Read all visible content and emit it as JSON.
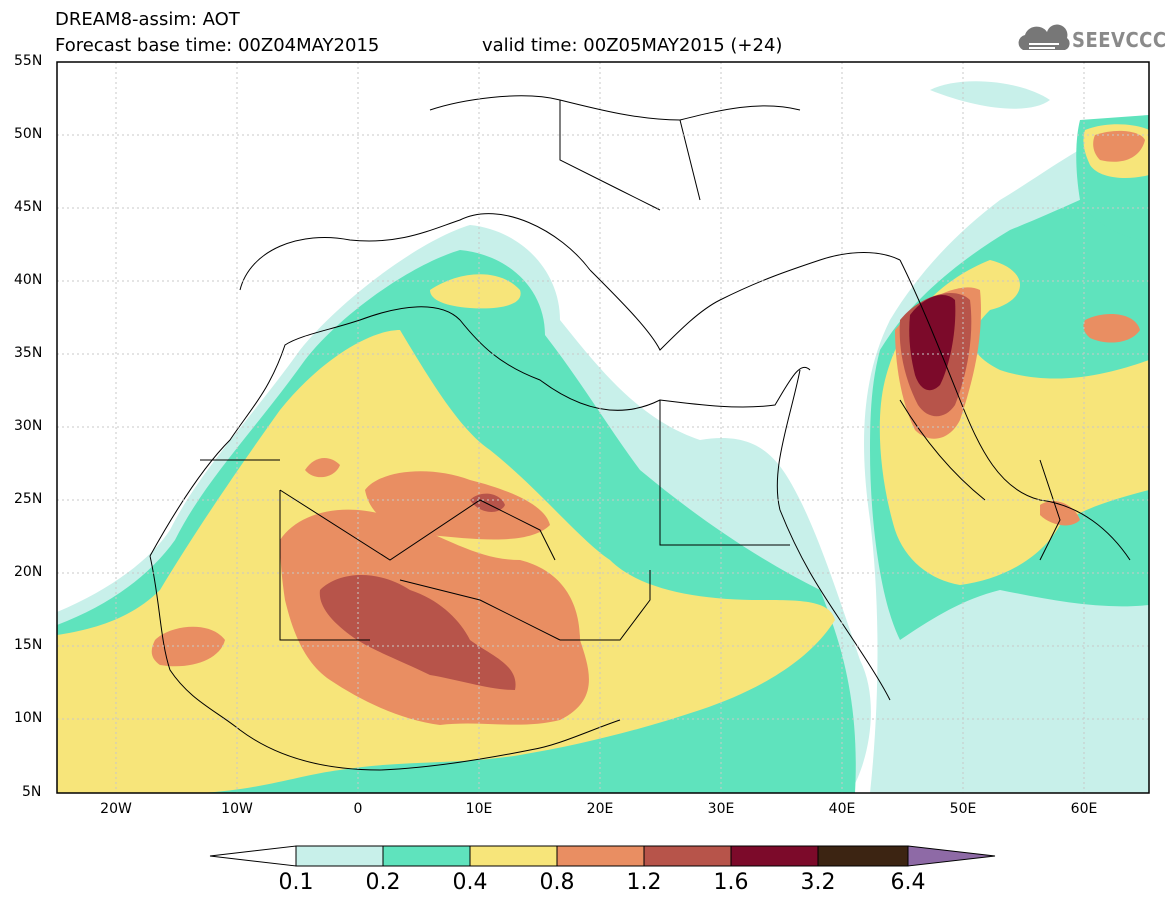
{
  "header": {
    "title": "DREAM8-assim: AOT",
    "forecast_base": "Forecast base time: 00Z04MAY2015",
    "valid_time": "valid time: 00Z05MAY2015 (+24)",
    "logo_text": "SEEVCCC"
  },
  "axes": {
    "lat_labels": [
      "55N",
      "50N",
      "45N",
      "40N",
      "35N",
      "30N",
      "25N",
      "20N",
      "15N",
      "10N",
      "5N"
    ],
    "lon_labels": [
      "20W",
      "10W",
      "0",
      "10E",
      "20E",
      "30E",
      "40E",
      "50E",
      "60E"
    ],
    "lon_range": [
      -25,
      65
    ],
    "lat_range": [
      5,
      55
    ]
  },
  "colorbar": {
    "labels": [
      "0.1",
      "0.2",
      "0.4",
      "0.8",
      "1.2",
      "1.6",
      "3.2",
      "6.4"
    ],
    "colors": [
      "#ffffff",
      "#c8f0ea",
      "#5fe3bd",
      "#f7e57a",
      "#e98e62",
      "#b7544a",
      "#7c0a2a",
      "#3c2412",
      "#8e6aa6"
    ]
  },
  "map": {
    "grid": true,
    "palette": {
      "c01": "#c8f0ea",
      "c02": "#5fe3bd",
      "c04": "#f7e57a",
      "c08": "#e98e62",
      "c12": "#b7544a",
      "c16": "#7c0a2a"
    }
  }
}
